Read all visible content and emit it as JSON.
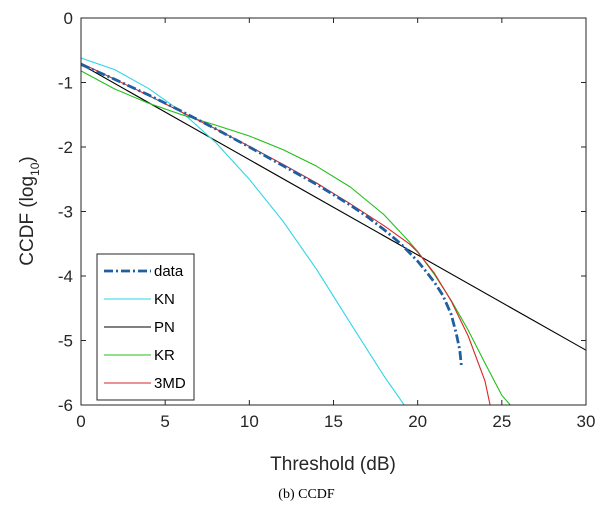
{
  "caption": "(b) CCDF",
  "chart_data": {
    "type": "line",
    "title": "",
    "xlabel": "Threshold (dB)",
    "ylabel_main": "CCDF (log",
    "ylabel_sub": "10",
    "ylabel_close": ")",
    "xlim": [
      0,
      30
    ],
    "ylim": [
      -6,
      0
    ],
    "xticks": [
      0,
      5,
      10,
      15,
      20,
      25,
      30
    ],
    "yticks": [
      0,
      -1,
      -2,
      -3,
      -4,
      -5,
      -6
    ],
    "grid": false,
    "legend_position": "bottom-left",
    "series": [
      {
        "name": "data",
        "color": "#1f5fa0",
        "style": "dashdot",
        "x": [
          0,
          2,
          4,
          6,
          8,
          10,
          12,
          14,
          16,
          17,
          18,
          19,
          20,
          20.5,
          21,
          21.5,
          22,
          22.3,
          22.5,
          22.6
        ],
        "y": [
          -0.72,
          -0.95,
          -1.19,
          -1.45,
          -1.72,
          -2.0,
          -2.29,
          -2.58,
          -2.9,
          -3.08,
          -3.28,
          -3.5,
          -3.77,
          -3.93,
          -4.1,
          -4.3,
          -4.6,
          -4.9,
          -5.15,
          -5.4
        ]
      },
      {
        "name": "KN",
        "color": "#2fd6e6",
        "style": "solid",
        "x": [
          0,
          2,
          4,
          6,
          8,
          10,
          12,
          14,
          16,
          18,
          19.2
        ],
        "y": [
          -0.62,
          -0.8,
          -1.09,
          -1.46,
          -1.93,
          -2.5,
          -3.15,
          -3.9,
          -4.73,
          -5.55,
          -6.0
        ]
      },
      {
        "name": "PN",
        "color": "#000000",
        "style": "solid",
        "x": [
          0,
          30
        ],
        "y": [
          -0.72,
          -5.15
        ]
      },
      {
        "name": "KR",
        "color": "#22c01a",
        "style": "solid",
        "x": [
          0,
          2,
          4,
          6,
          8,
          10,
          12,
          14,
          16,
          18,
          19.5,
          20,
          21,
          22,
          23,
          24,
          25,
          25.5
        ],
        "y": [
          -0.82,
          -1.1,
          -1.32,
          -1.5,
          -1.66,
          -1.83,
          -2.04,
          -2.3,
          -2.62,
          -3.05,
          -3.47,
          -3.62,
          -3.98,
          -4.38,
          -4.84,
          -5.35,
          -5.85,
          -6.0
        ]
      },
      {
        "name": "3MD",
        "color": "#d62728",
        "style": "solid",
        "x": [
          0,
          2,
          4,
          6,
          8,
          10,
          12,
          14,
          16,
          18,
          19.5,
          20,
          21,
          22,
          23,
          24,
          24.3
        ],
        "y": [
          -0.7,
          -0.95,
          -1.2,
          -1.46,
          -1.72,
          -1.99,
          -2.27,
          -2.56,
          -2.88,
          -3.22,
          -3.5,
          -3.63,
          -3.96,
          -4.39,
          -4.93,
          -5.63,
          -6.0
        ]
      }
    ]
  }
}
